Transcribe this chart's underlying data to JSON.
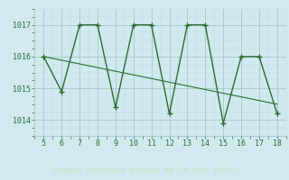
{
  "x": [
    5,
    6,
    7,
    8,
    9,
    10,
    11,
    12,
    13,
    14,
    15,
    16,
    17,
    18
  ],
  "y": [
    1016.0,
    1014.9,
    1017.0,
    1017.0,
    1014.4,
    1017.0,
    1017.0,
    1014.2,
    1017.0,
    1017.0,
    1013.9,
    1016.0,
    1016.0,
    1014.2
  ],
  "trend_x": [
    5,
    18
  ],
  "trend_y": [
    1016.0,
    1014.5
  ],
  "line_color": "#2d6a2d",
  "bg_color": "#d0eaf0",
  "grid_color_major": "#9dbfbf",
  "bottom_bar_color": "#2d6a2d",
  "xlabel": "Graphe pression niveau de la mer (hPa)",
  "xlim": [
    4.5,
    18.5
  ],
  "ylim": [
    1013.5,
    1017.5
  ],
  "yticks": [
    1014,
    1015,
    1016,
    1017
  ],
  "xticks": [
    5,
    6,
    7,
    8,
    9,
    10,
    11,
    12,
    13,
    14,
    15,
    16,
    17,
    18
  ],
  "marker": "+",
  "markersize": 5,
  "linewidth": 1.0,
  "xlabel_fontsize": 6.5,
  "tick_fontsize": 6,
  "tick_color": "#2d6a2d",
  "xlabel_color": "#c8e8c8"
}
